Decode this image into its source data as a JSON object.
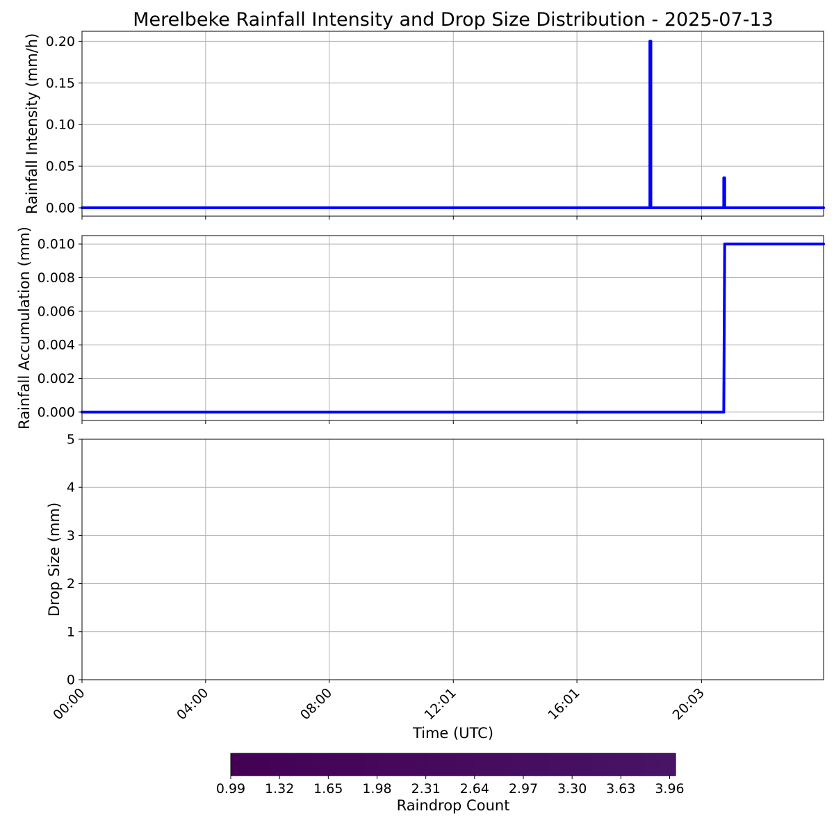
{
  "figure": {
    "title": "Merelbeke Rainfall Intensity and Drop Size Distribution - 2025-07-13"
  },
  "chart_data": [
    {
      "type": "line",
      "ylabel": "Rainfall Intensity (mm/h)",
      "xlim_hours": [
        0,
        24
      ],
      "ylim": [
        -0.01,
        0.212
      ],
      "yticks": [
        "0.00",
        "0.05",
        "0.10",
        "0.15",
        "0.20"
      ],
      "grid": true,
      "series": [
        {
          "color": "#0000ff",
          "x_hours": [
            0,
            18.38,
            18.38,
            18.41,
            18.41,
            20.77,
            20.77,
            20.8,
            20.8,
            24
          ],
          "y": [
            0,
            0,
            0.2,
            0.2,
            0,
            0,
            0.036,
            0.036,
            0,
            0
          ]
        }
      ]
    },
    {
      "type": "line",
      "ylabel": "Rainfall Accumulation (mm)",
      "xlim_hours": [
        0,
        24
      ],
      "ylim": [
        -0.0005,
        0.0105
      ],
      "yticks": [
        "0.000",
        "0.002",
        "0.004",
        "0.006",
        "0.008",
        "0.010"
      ],
      "grid": true,
      "series": [
        {
          "color": "#0000ff",
          "x_hours": [
            0,
            20.77,
            20.8,
            24
          ],
          "y": [
            0,
            0,
            0.01,
            0.01
          ]
        }
      ]
    },
    {
      "type": "heatmap",
      "ylabel": "Drop Size (mm)",
      "xlabel": "Time (UTC)",
      "xlim_hours": [
        0,
        24
      ],
      "ylim": [
        0,
        5
      ],
      "yticks": [
        "0",
        "1",
        "2",
        "3",
        "4",
        "5"
      ],
      "grid": true,
      "cells": []
    }
  ],
  "time_axis": {
    "ticks": [
      {
        "label": "00:00",
        "hours": 0
      },
      {
        "label": "04:00",
        "hours": 4
      },
      {
        "label": "08:00",
        "hours": 8
      },
      {
        "label": "12:01",
        "hours": 12.017
      },
      {
        "label": "16:01",
        "hours": 16.017
      },
      {
        "label": "20:03",
        "hours": 20.05
      }
    ]
  },
  "colorbar": {
    "label": "Raindrop Count",
    "min": 0.99,
    "max": 4.0,
    "colormap": "viridis",
    "start_color": "#440154",
    "end_color": "#471466",
    "ticks": [
      {
        "label": "0.99",
        "value": 0.99
      },
      {
        "label": "1.32",
        "value": 1.32
      },
      {
        "label": "1.65",
        "value": 1.65
      },
      {
        "label": "1.98",
        "value": 1.98
      },
      {
        "label": "2.31",
        "value": 2.31
      },
      {
        "label": "2.64",
        "value": 2.64
      },
      {
        "label": "2.97",
        "value": 2.97
      },
      {
        "label": "3.30",
        "value": 3.3
      },
      {
        "label": "3.63",
        "value": 3.63
      },
      {
        "label": "3.96",
        "value": 3.96
      }
    ]
  }
}
